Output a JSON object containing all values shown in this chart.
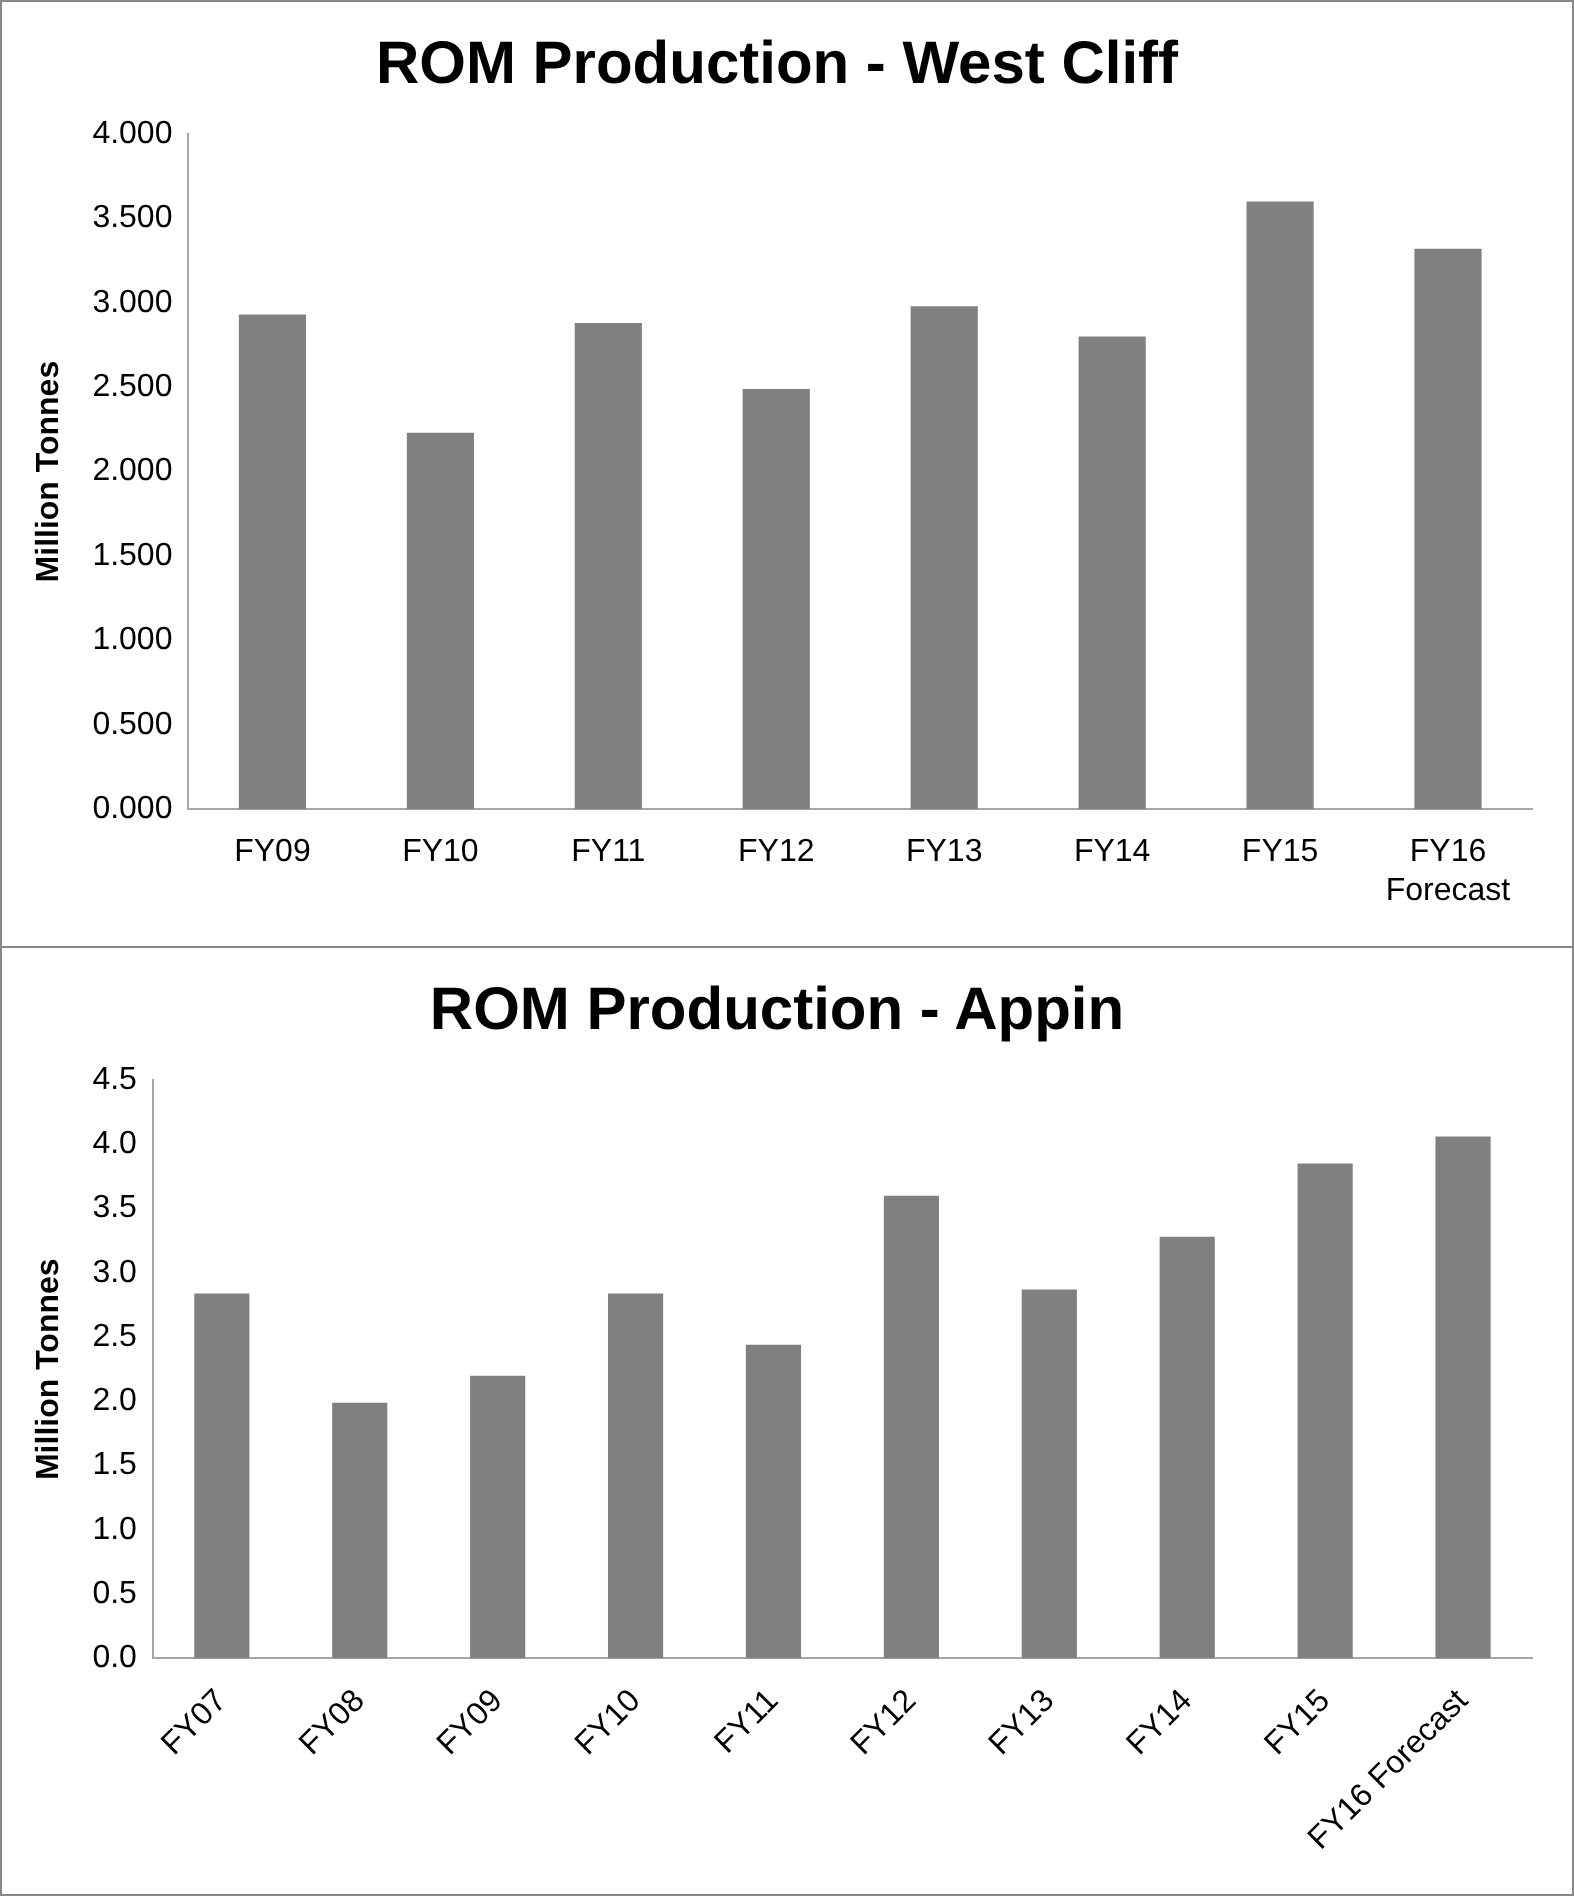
{
  "chart_data": [
    {
      "type": "bar",
      "title": "ROM Production - West Cliff",
      "ylabel": "Million Tonnes",
      "categories": [
        "FY09",
        "FY10",
        "FY11",
        "FY12",
        "FY13",
        "FY14",
        "FY15",
        "FY16\nForecast"
      ],
      "values": [
        2.93,
        2.23,
        2.88,
        2.49,
        2.98,
        2.8,
        3.6,
        3.32
      ],
      "color": "#808080",
      "ylim": [
        0,
        4
      ],
      "yticks": [
        {
          "value": 0,
          "label": "0.000"
        },
        {
          "value": 0.5,
          "label": "0.500"
        },
        {
          "value": 1,
          "label": "1.000"
        },
        {
          "value": 1.5,
          "label": "1.500"
        },
        {
          "value": 2,
          "label": "2.000"
        },
        {
          "value": 2.5,
          "label": "2.500"
        },
        {
          "value": 3,
          "label": "3.000"
        },
        {
          "value": 3.5,
          "label": "3.500"
        },
        {
          "value": 4,
          "label": "4.000"
        }
      ],
      "grid": false,
      "legend": false
    },
    {
      "type": "bar",
      "title": "ROM Production - Appin",
      "ylabel": "Million Tonnes",
      "categories": [
        "FY07",
        "FY08",
        "FY09",
        "FY10",
        "FY11",
        "FY12",
        "FY13",
        "FY14",
        "FY15",
        "FY16 Forecast"
      ],
      "values": [
        2.84,
        1.99,
        2.2,
        2.84,
        2.44,
        3.6,
        2.87,
        3.28,
        3.85,
        4.06
      ],
      "color": "#808080",
      "ylim": [
        0,
        4.5
      ],
      "yticks": [
        {
          "value": 0,
          "label": "0.0"
        },
        {
          "value": 0.5,
          "label": "0.5"
        },
        {
          "value": 1,
          "label": "1.0"
        },
        {
          "value": 1.5,
          "label": "1.5"
        },
        {
          "value": 2,
          "label": "2.0"
        },
        {
          "value": 2.5,
          "label": "2.5"
        },
        {
          "value": 3,
          "label": "3.0"
        },
        {
          "value": 3.5,
          "label": "3.5"
        },
        {
          "value": 4,
          "label": "4.0"
        },
        {
          "value": 4.5,
          "label": "4.5"
        }
      ],
      "grid": false,
      "legend": false
    }
  ]
}
